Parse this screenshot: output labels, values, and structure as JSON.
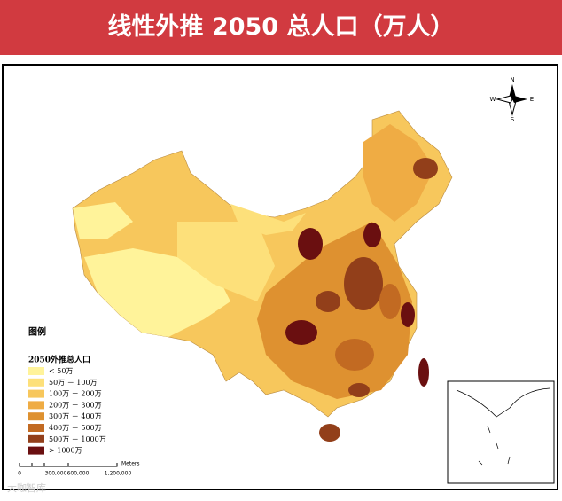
{
  "header": {
    "title": "线性外推 2050 总人口（万人）"
  },
  "compass": {
    "n": "N",
    "s": "S",
    "e": "E",
    "w": "W"
  },
  "legend": {
    "title": "图例",
    "subtitle": "2050外推总人口",
    "items": [
      {
        "label": "< 50万",
        "color": "#fff39a"
      },
      {
        "label": "50万 － 100万",
        "color": "#fde07a"
      },
      {
        "label": "100万 － 200万",
        "color": "#f7c75c"
      },
      {
        "label": "200万 － 300万",
        "color": "#efac44"
      },
      {
        "label": "300万 － 400万",
        "color": "#de9130"
      },
      {
        "label": "400万 － 500万",
        "color": "#c26a22"
      },
      {
        "label": "500万 － 1000万",
        "color": "#923f1a"
      },
      {
        "label": "> 1000万",
        "color": "#6a0f10"
      }
    ]
  },
  "scale_bar": {
    "labels": [
      "0",
      "300,000",
      "600,000",
      "1,200,000"
    ],
    "unit": "Meters"
  },
  "watermark": "大咖智库"
}
